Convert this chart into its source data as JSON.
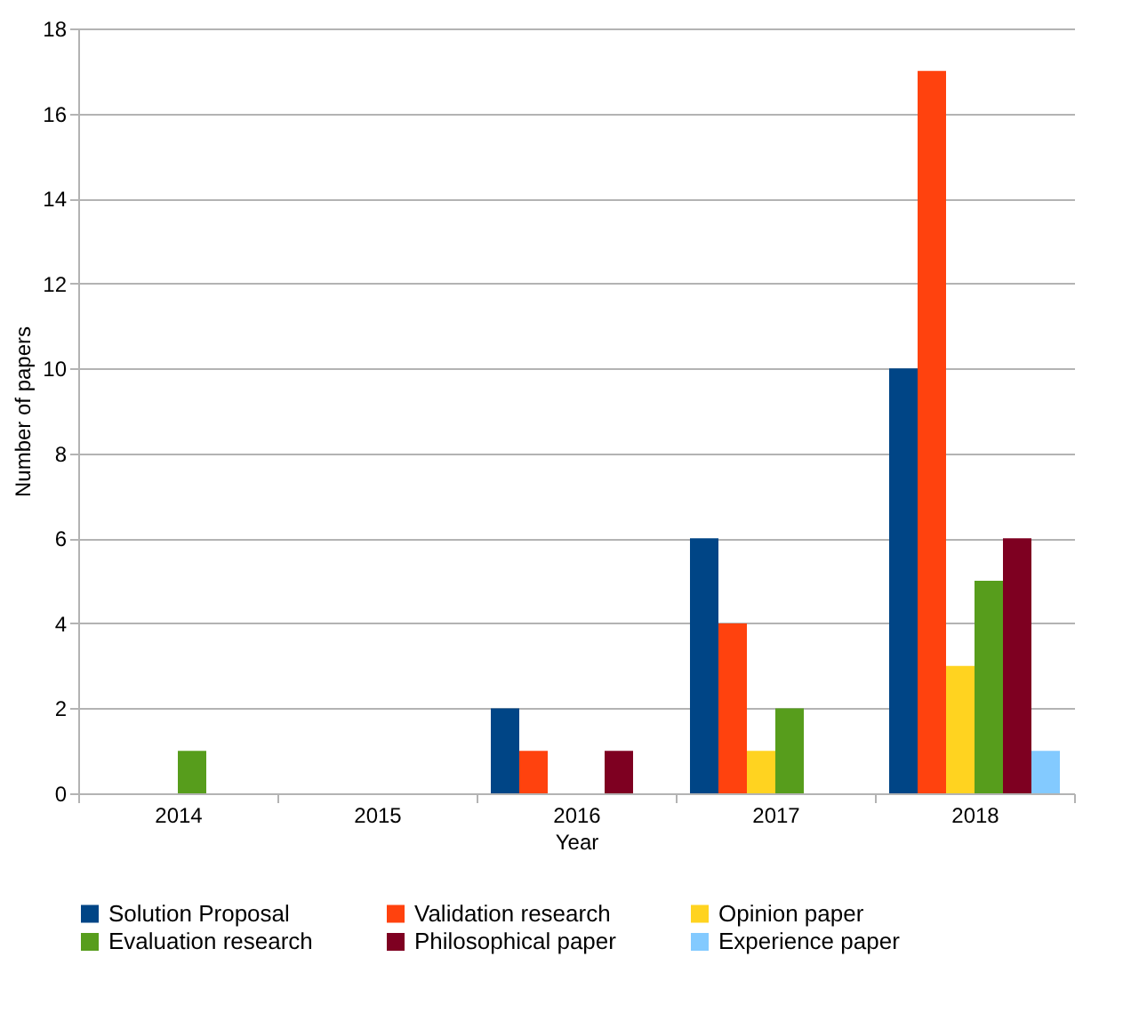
{
  "chart_data": {
    "type": "bar",
    "xlabel": "Year",
    "ylabel": "Number of papers",
    "categories": [
      "2014",
      "2015",
      "2016",
      "2017",
      "2018"
    ],
    "series": [
      {
        "name": "Solution Proposal",
        "color": "#004586",
        "values": [
          0,
          0,
          2,
          6,
          10
        ]
      },
      {
        "name": "Validation research",
        "color": "#ff420e",
        "values": [
          0,
          0,
          1,
          4,
          17
        ]
      },
      {
        "name": "Opinion paper",
        "color": "#ffd320",
        "values": [
          0,
          0,
          0,
          1,
          3
        ]
      },
      {
        "name": "Evaluation research",
        "color": "#579d1c",
        "values": [
          1,
          0,
          0,
          2,
          5
        ]
      },
      {
        "name": "Philosophical paper",
        "color": "#7e0021",
        "values": [
          0,
          0,
          1,
          0,
          6
        ]
      },
      {
        "name": "Experience paper",
        "color": "#83caff",
        "values": [
          0,
          0,
          0,
          0,
          1
        ]
      }
    ],
    "ylim": [
      0,
      18
    ],
    "yticks": [
      0,
      2,
      4,
      6,
      8,
      10,
      12,
      14,
      16,
      18
    ],
    "grid": "y",
    "legend": "bottom"
  }
}
